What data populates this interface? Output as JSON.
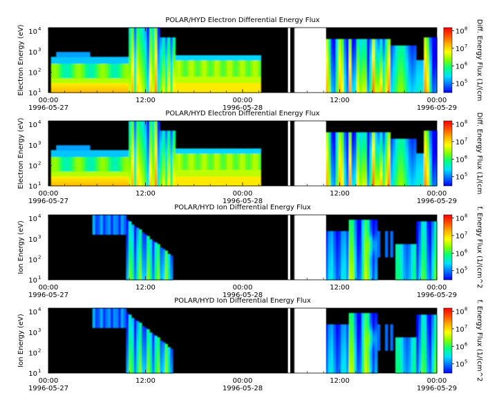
{
  "colorbar_stops": [
    "#0000ff",
    "#0070ff",
    "#00e0ff",
    "#00ff80",
    "#80ff00",
    "#ffff00",
    "#ffb000",
    "#ff5000",
    "#ff0000"
  ],
  "chart_data": [
    {
      "type": "heatmap",
      "title": "POLAR/HYD  Electron Differential Energy Flux",
      "ylabel": "Electron Energy (eV)",
      "ylim": [
        10,
        15000
      ],
      "y_scale": "log",
      "y_ticks": [
        {
          "base": "10",
          "exp": "1"
        },
        {
          "base": "10",
          "exp": "2"
        },
        {
          "base": "10",
          "exp": "3"
        },
        {
          "base": "10",
          "exp": "4"
        }
      ],
      "x_ticks": [
        {
          "top": "00:00",
          "bottom": "1996-05-27"
        },
        {
          "top": "12:00",
          "bottom": ""
        },
        {
          "top": "00:00",
          "bottom": "1996-05-28"
        },
        {
          "top": "12:00",
          "bottom": ""
        },
        {
          "top": "00:00",
          "bottom": "1996-05-29"
        }
      ],
      "colorbar_label": "Diff. Energy Flux (1/(cm",
      "colorbar_range": [
        30000,
        150000000
      ],
      "colorbar_ticks": [
        {
          "base": "10",
          "exp": "5"
        },
        {
          "base": "10",
          "exp": "6"
        },
        {
          "base": "10",
          "exp": "7"
        },
        {
          "base": "10",
          "exp": "8"
        }
      ]
    },
    {
      "type": "heatmap",
      "title": "POLAR/HYD  Electron Differential Energy Flux",
      "ylabel": "Electron Energy (eV)",
      "ylim": [
        10,
        15000
      ],
      "y_scale": "log",
      "y_ticks": [
        {
          "base": "10",
          "exp": "1"
        },
        {
          "base": "10",
          "exp": "2"
        },
        {
          "base": "10",
          "exp": "3"
        },
        {
          "base": "10",
          "exp": "4"
        }
      ],
      "x_ticks": [
        {
          "top": "00:00",
          "bottom": "1996-05-27"
        },
        {
          "top": "12:00",
          "bottom": ""
        },
        {
          "top": "00:00",
          "bottom": "1996-05-28"
        },
        {
          "top": "12:00",
          "bottom": ""
        },
        {
          "top": "00:00",
          "bottom": "1996-05-29"
        }
      ],
      "colorbar_label": "Diff. Energy Flux (1/(cm",
      "colorbar_range": [
        30000,
        150000000
      ],
      "colorbar_ticks": [
        {
          "base": "10",
          "exp": "5"
        },
        {
          "base": "10",
          "exp": "6"
        },
        {
          "base": "10",
          "exp": "7"
        },
        {
          "base": "10",
          "exp": "8"
        }
      ]
    },
    {
      "type": "heatmap",
      "title": "POLAR/HYD  Ion Differential Energy Flux",
      "ylabel": "Ion Energy (eV)",
      "ylim": [
        10,
        15000
      ],
      "y_scale": "log",
      "y_ticks": [
        {
          "base": "10",
          "exp": "1"
        },
        {
          "base": "10",
          "exp": "2"
        },
        {
          "base": "10",
          "exp": "3"
        },
        {
          "base": "10",
          "exp": "4"
        }
      ],
      "x_ticks": [
        {
          "top": "00:00",
          "bottom": "1996-05-27"
        },
        {
          "top": "12:00",
          "bottom": ""
        },
        {
          "top": "00:00",
          "bottom": "1996-05-28"
        },
        {
          "top": "12:00",
          "bottom": ""
        },
        {
          "top": "00:00",
          "bottom": "1996-05-29"
        }
      ],
      "colorbar_label": "f. Energy Flux (1/(cm^2",
      "colorbar_range": [
        30000,
        150000000
      ],
      "colorbar_ticks": [
        {
          "base": "10",
          "exp": "5"
        },
        {
          "base": "10",
          "exp": "6"
        },
        {
          "base": "10",
          "exp": "7"
        },
        {
          "base": "10",
          "exp": "8"
        }
      ]
    },
    {
      "type": "heatmap",
      "title": "POLAR/HYD  Ion Differential Energy Flux",
      "ylabel": "Ion Energy (eV)",
      "ylim": [
        10,
        15000
      ],
      "y_scale": "log",
      "y_ticks": [
        {
          "base": "10",
          "exp": "1"
        },
        {
          "base": "10",
          "exp": "2"
        },
        {
          "base": "10",
          "exp": "3"
        },
        {
          "base": "10",
          "exp": "4"
        }
      ],
      "x_ticks": [
        {
          "top": "00:00",
          "bottom": "1996-05-27"
        },
        {
          "top": "12:00",
          "bottom": ""
        },
        {
          "top": "00:00",
          "bottom": "1996-05-28"
        },
        {
          "top": "12:00",
          "bottom": ""
        },
        {
          "top": "00:00",
          "bottom": "1996-05-29"
        }
      ],
      "colorbar_label": "f. Energy Flux (1/(cm^2",
      "colorbar_range": [
        30000,
        150000000
      ],
      "colorbar_ticks": [
        {
          "base": "10",
          "exp": "5"
        },
        {
          "base": "10",
          "exp": "6"
        },
        {
          "base": "10",
          "exp": "7"
        },
        {
          "base": "10",
          "exp": "8"
        }
      ]
    }
  ]
}
